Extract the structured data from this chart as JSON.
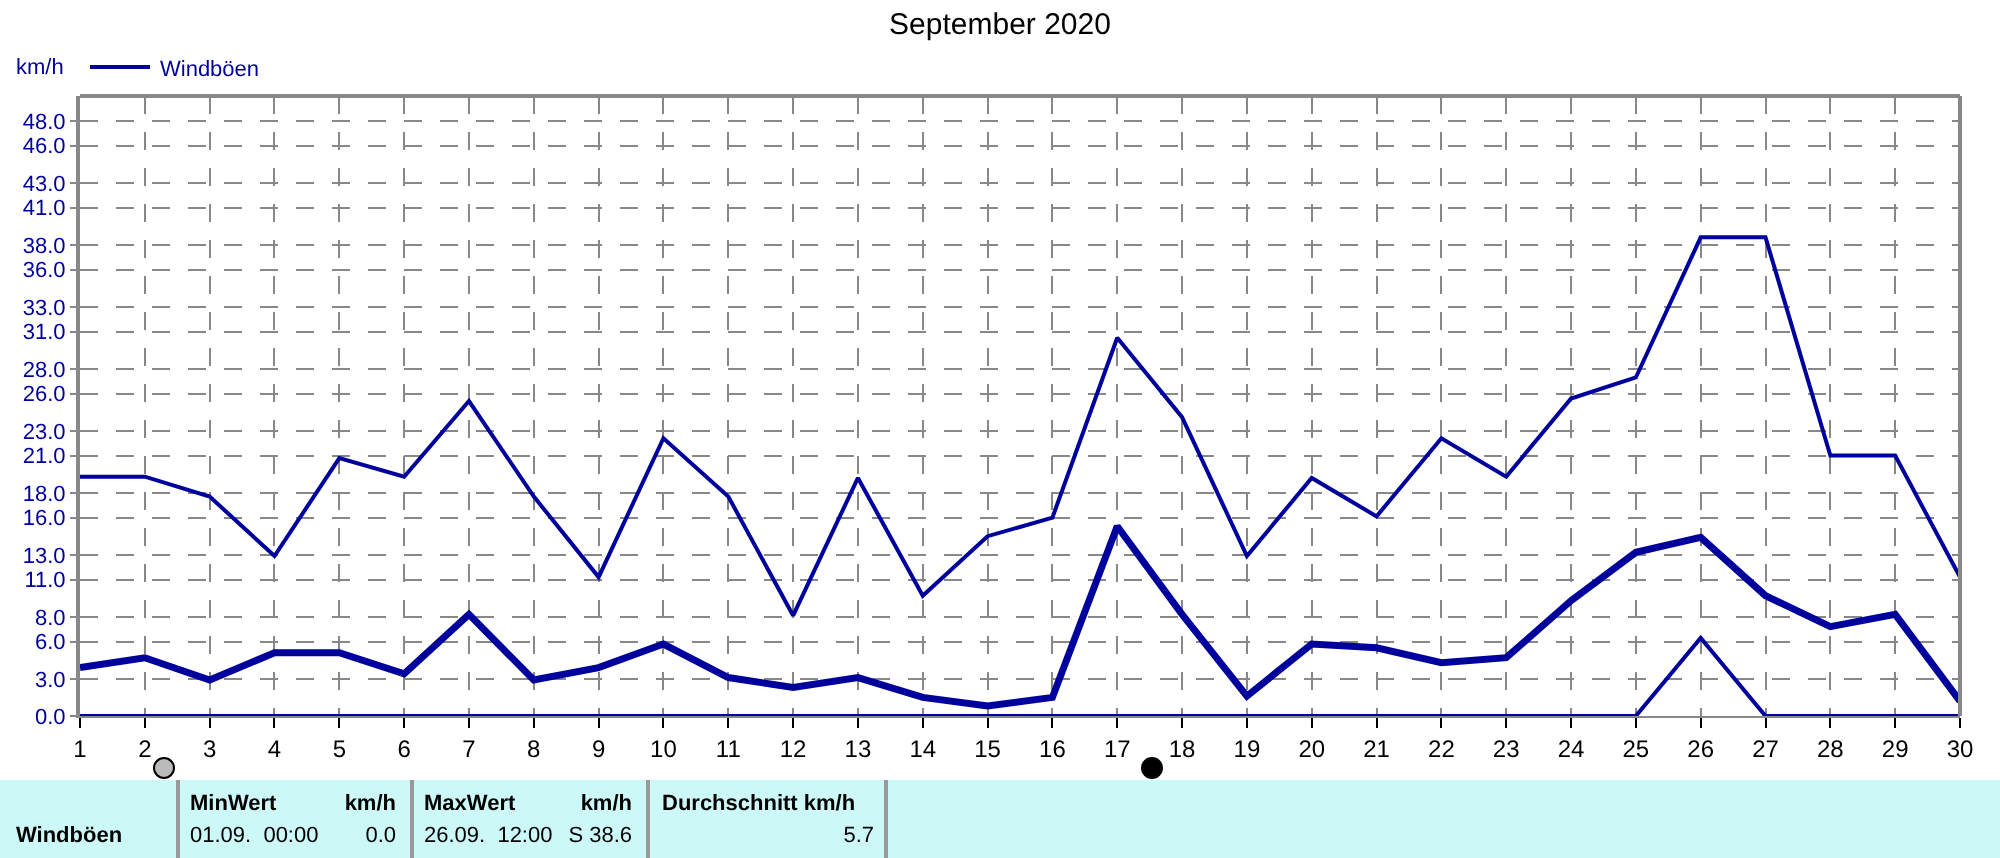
{
  "chart_data": {
    "type": "line",
    "title": "September 2020",
    "ylabel": "km/h",
    "x": [
      1,
      2,
      3,
      4,
      5,
      6,
      7,
      8,
      9,
      10,
      11,
      12,
      13,
      14,
      15,
      16,
      17,
      18,
      19,
      20,
      21,
      22,
      23,
      24,
      25,
      26,
      27,
      28,
      29,
      30
    ],
    "series": [
      {
        "name": "Windböen",
        "color": "#00009c",
        "values": [
          19.3,
          19.3,
          17.7,
          12.9,
          20.8,
          19.3,
          25.4,
          17.7,
          11.2,
          22.4,
          17.7,
          8.1,
          19.2,
          9.7,
          14.5,
          16.0,
          30.5,
          24.1,
          12.9,
          19.2,
          16.1,
          22.4,
          19.3,
          25.6,
          27.3,
          38.6,
          38.6,
          21.0,
          21.0,
          11.2
        ]
      },
      {
        "color": "#00009c",
        "values": [
          3.9,
          4.7,
          2.9,
          5.1,
          5.1,
          3.4,
          8.2,
          2.9,
          3.9,
          5.8,
          3.1,
          2.3,
          3.1,
          1.5,
          0.8,
          1.5,
          15.3,
          8.2,
          1.6,
          5.8,
          5.5,
          4.3,
          4.7,
          9.3,
          13.2,
          14.4,
          9.7,
          7.2,
          8.2,
          1.2
        ]
      },
      {
        "color": "#00009c",
        "values": [
          0,
          0,
          0,
          0,
          0,
          0,
          0,
          0,
          0,
          0,
          0,
          0,
          0,
          0,
          0,
          0,
          0,
          0,
          0,
          0,
          0,
          0,
          0,
          0,
          0,
          6.3,
          0,
          0,
          0,
          0
        ]
      }
    ],
    "xlim": [
      1,
      30
    ],
    "xticks": [
      1,
      2,
      3,
      4,
      5,
      6,
      7,
      8,
      9,
      10,
      11,
      12,
      13,
      14,
      15,
      16,
      17,
      18,
      19,
      20,
      21,
      22,
      23,
      24,
      25,
      26,
      27,
      28,
      29,
      30
    ],
    "ylim": [
      0,
      50
    ],
    "yticks": [
      {
        "value": 0,
        "label": "0.0"
      },
      {
        "value": 3,
        "label": "3.0"
      },
      {
        "value": 6,
        "label": "6.0"
      },
      {
        "value": 8,
        "label": "8.0"
      },
      {
        "value": 11,
        "label": "11.0"
      },
      {
        "value": 13,
        "label": "13.0"
      },
      {
        "value": 16,
        "label": "16.0"
      },
      {
        "value": 18,
        "label": "18.0"
      },
      {
        "value": 21,
        "label": "21.0"
      },
      {
        "value": 23,
        "label": "23.0"
      },
      {
        "value": 26,
        "label": "26.0"
      },
      {
        "value": 28,
        "label": "28.0"
      },
      {
        "value": 31,
        "label": "31.0"
      },
      {
        "value": 33,
        "label": "33.0"
      },
      {
        "value": 36,
        "label": "36.0"
      },
      {
        "value": 38,
        "label": "38.0"
      },
      {
        "value": 41,
        "label": "41.0"
      },
      {
        "value": 43,
        "label": "43.0"
      },
      {
        "value": 46,
        "label": "46.0"
      },
      {
        "value": 48,
        "label": "48.0"
      }
    ],
    "grid": true,
    "legend": "top left",
    "marker": "none",
    "line_style": "solid",
    "annotations": [
      "Windböen",
      "MinWert",
      "km/h",
      "01.09.  00:00",
      "0.0",
      "MaxWert",
      "km/h",
      "26.09.  12:00",
      "S 38.6",
      "Durchschnitt km/h",
      "5.7"
    ]
  }
}
